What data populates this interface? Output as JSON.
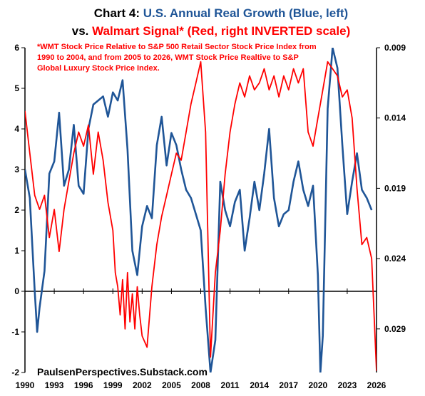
{
  "colors": {
    "blue": "#1f5597",
    "red": "#ff0000",
    "black": "#000000"
  },
  "chart_data": {
    "type": "line",
    "title": {
      "prefix": "Chart 4: ",
      "blue_part": "U.S. Annual Real Growth (Blue, left)",
      "vs_part": "vs. ",
      "red_part": "Walmart Signal* (Red, right INVERTED scale)"
    },
    "annotation": [
      "*WMT Stock Price Relative to S&P 500 Retail Sector Stock Price Index from",
      "1990 to 2004, and from 2005 to 2026, WMT Stock Price Realtive to S&P",
      "Global Luxury Stock Price Index."
    ],
    "footer": "PaulsenPerspectives.Substack.com",
    "x_range": [
      1990,
      2026
    ],
    "x_ticks": [
      "1990",
      "1993",
      "1996",
      "1999",
      "2002",
      "2005",
      "2008",
      "2011",
      "2014",
      "2017",
      "2020",
      "2023",
      "2026"
    ],
    "left_axis": {
      "range": [
        -2,
        6
      ],
      "ticks": [
        "-2",
        "-1",
        "0",
        "1",
        "2",
        "3",
        "4",
        "5",
        "6"
      ]
    },
    "right_axis": {
      "range": [
        0.009,
        0.0321
      ],
      "inverted": true,
      "ticks": [
        "0.009",
        "0.014",
        "0.019",
        "0.024",
        "0.029"
      ]
    },
    "series": [
      {
        "color": "blue",
        "axis": "left",
        "x": [
          1990,
          1990.5,
          1991,
          1991.25,
          1991.5,
          1992,
          1992.5,
          1993,
          1993.5,
          1994,
          1994.5,
          1995,
          1995.5,
          1996,
          1996.5,
          1997,
          1997.5,
          1998,
          1998.5,
          1999,
          1999.5,
          2000,
          2000.5,
          2001,
          2001.5,
          2002,
          2002.5,
          2003,
          2003.5,
          2004,
          2004.5,
          2005,
          2005.5,
          2006,
          2006.5,
          2007,
          2007.5,
          2008,
          2008.5,
          2009,
          2009.5,
          2010,
          2010.5,
          2011,
          2011.5,
          2012,
          2012.5,
          2013,
          2013.5,
          2014,
          2014.5,
          2015,
          2015.5,
          2016,
          2016.5,
          2017,
          2017.5,
          2018,
          2018.5,
          2019,
          2019.5,
          2020,
          2020.25,
          2020.5,
          2021,
          2021.5,
          2022,
          2022.5,
          2023,
          2023.5,
          2024,
          2024.5,
          2025,
          2025.5
        ],
        "values": [
          3.0,
          2.3,
          0.0,
          -1.0,
          -0.4,
          0.5,
          2.9,
          3.2,
          4.4,
          2.6,
          3.0,
          4.1,
          2.6,
          2.4,
          4.0,
          4.6,
          4.7,
          4.8,
          4.3,
          4.9,
          4.7,
          5.2,
          3.5,
          1.0,
          0.4,
          1.6,
          2.1,
          1.8,
          3.6,
          4.3,
          3.1,
          3.9,
          3.6,
          3.0,
          2.5,
          2.3,
          1.9,
          1.5,
          -0.4,
          -2.0,
          -1.2,
          2.7,
          2.0,
          1.6,
          2.2,
          2.5,
          1.0,
          1.8,
          2.7,
          2.0,
          2.9,
          4.0,
          2.3,
          1.6,
          1.9,
          2.0,
          2.7,
          3.2,
          2.5,
          2.1,
          2.6,
          0.4,
          -2.0,
          -1.1,
          4.5,
          6.0,
          5.5,
          3.6,
          1.9,
          2.7,
          3.4,
          2.5,
          2.3,
          2.0
        ]
      },
      {
        "color": "red",
        "axis": "right",
        "x": [
          1990,
          1990.5,
          1991,
          1991.5,
          1992,
          1992.5,
          1993,
          1993.5,
          1994,
          1994.5,
          1995,
          1995.5,
          1996,
          1996.5,
          1997,
          1997.5,
          1998,
          1998.5,
          1999,
          1999.25,
          1999.5,
          1999.75,
          2000,
          2000.25,
          2000.5,
          2000.75,
          2001,
          2001.25,
          2001.5,
          2001.75,
          2002,
          2002.5,
          2003,
          2003.5,
          2004,
          2004.5,
          2005,
          2005.5,
          2006,
          2006.5,
          2007,
          2007.5,
          2008,
          2008.5,
          2009,
          2009.5,
          2010,
          2010.5,
          2011,
          2011.5,
          2012,
          2012.5,
          2013,
          2013.5,
          2014,
          2014.5,
          2015,
          2015.5,
          2016,
          2016.5,
          2017,
          2017.5,
          2018,
          2018.5,
          2019,
          2019.5,
          2020,
          2020.5,
          2021,
          2021.5,
          2022,
          2022.5,
          2023,
          2023.5,
          2024,
          2024.5,
          2025,
          2025.5,
          2026
        ],
        "values": [
          0.0135,
          0.0165,
          0.0195,
          0.0205,
          0.0195,
          0.0225,
          0.0205,
          0.0235,
          0.0205,
          0.0185,
          0.0165,
          0.015,
          0.016,
          0.0145,
          0.018,
          0.015,
          0.017,
          0.02,
          0.022,
          0.025,
          0.026,
          0.028,
          0.0255,
          0.029,
          0.025,
          0.0285,
          0.0265,
          0.029,
          0.026,
          0.028,
          0.0295,
          0.0303,
          0.026,
          0.023,
          0.021,
          0.0195,
          0.018,
          0.0165,
          0.017,
          0.015,
          0.013,
          0.0115,
          0.01,
          0.015,
          0.031,
          0.025,
          0.022,
          0.018,
          0.015,
          0.013,
          0.0115,
          0.0125,
          0.011,
          0.012,
          0.0115,
          0.0105,
          0.012,
          0.011,
          0.0125,
          0.011,
          0.012,
          0.0105,
          0.0115,
          0.0105,
          0.015,
          0.016,
          0.014,
          0.012,
          0.01,
          0.0105,
          0.011,
          0.0125,
          0.012,
          0.014,
          0.019,
          0.023,
          0.0225,
          0.024,
          0.032
        ]
      }
    ]
  }
}
